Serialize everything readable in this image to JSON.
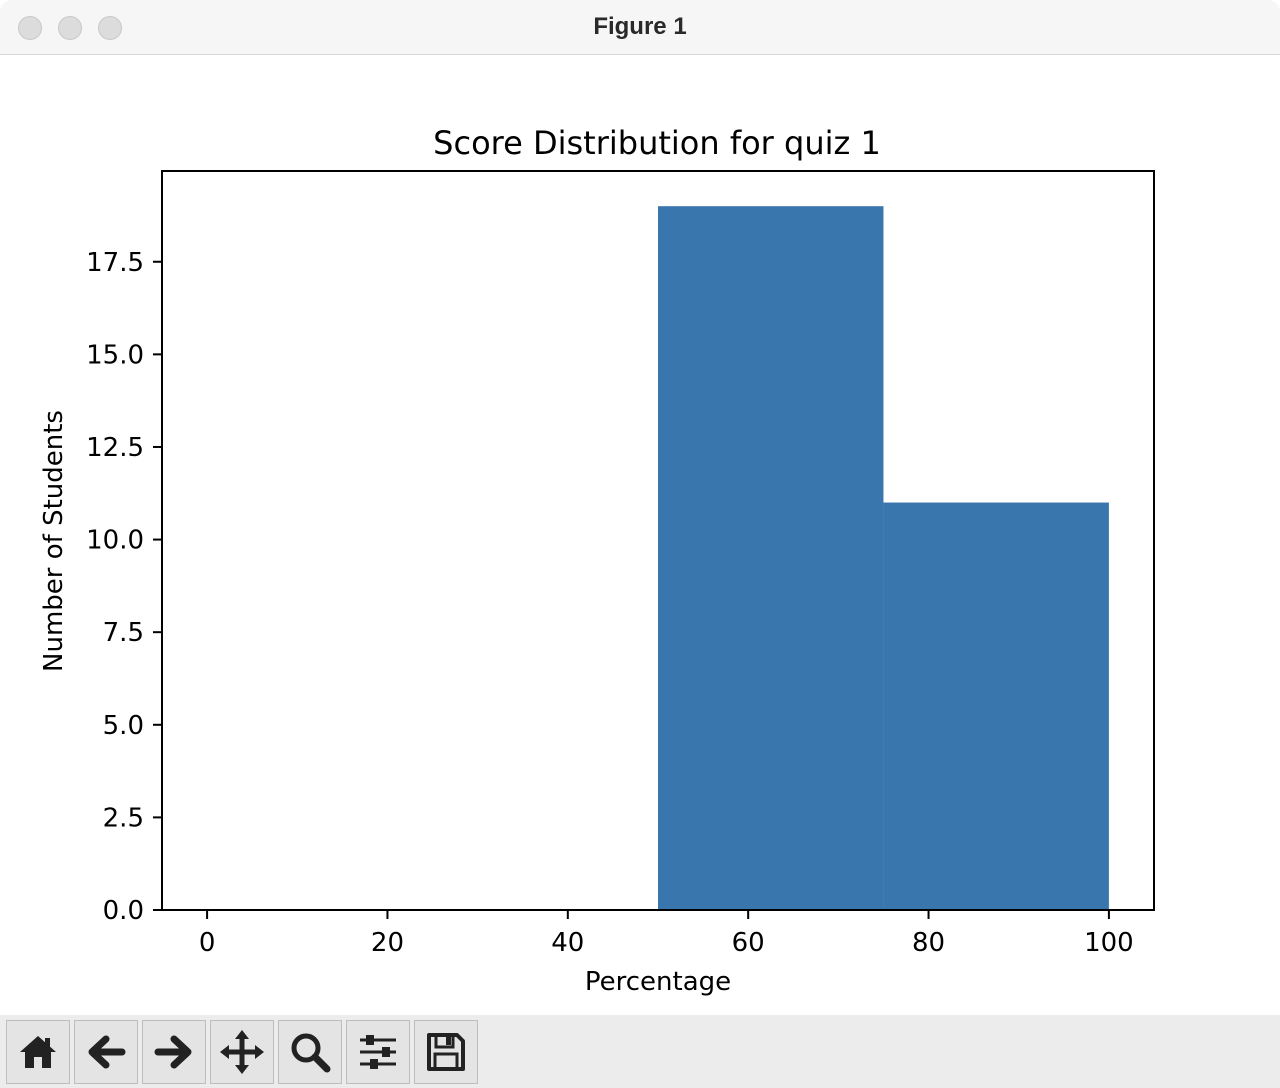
{
  "window": {
    "title": "Figure 1"
  },
  "toolbar": {
    "buttons": [
      {
        "name": "home-button",
        "icon": "home-icon"
      },
      {
        "name": "back-button",
        "icon": "arrow-left-icon"
      },
      {
        "name": "forward-button",
        "icon": "arrow-right-icon"
      },
      {
        "name": "pan-button",
        "icon": "move-icon"
      },
      {
        "name": "zoom-button",
        "icon": "magnifier-icon"
      },
      {
        "name": "configure-subplots-button",
        "icon": "sliders-icon"
      },
      {
        "name": "save-button",
        "icon": "floppy-disk-icon"
      }
    ]
  },
  "chart_data": {
    "type": "histogram",
    "title": "Score Distribution for quiz 1",
    "xlabel": "Percentage",
    "ylabel": "Number of Students",
    "bins": [
      {
        "start": 50,
        "end": 75,
        "count": 19
      },
      {
        "start": 75,
        "end": 100,
        "count": 11
      }
    ],
    "xlim": [
      -5,
      105
    ],
    "ylim": [
      0,
      19.95
    ],
    "xticks": [
      0,
      20,
      40,
      60,
      80,
      100
    ],
    "xtick_labels": [
      "0",
      "20",
      "40",
      "60",
      "80",
      "100"
    ],
    "yticks": [
      0,
      2.5,
      5,
      7.5,
      10,
      12.5,
      15,
      17.5
    ],
    "ytick_labels": [
      "0.0",
      "2.5",
      "5.0",
      "7.5",
      "10.0",
      "12.5",
      "15.0",
      "17.5"
    ],
    "bar_color": "#3a76ae",
    "grid": false,
    "legend": "none"
  }
}
